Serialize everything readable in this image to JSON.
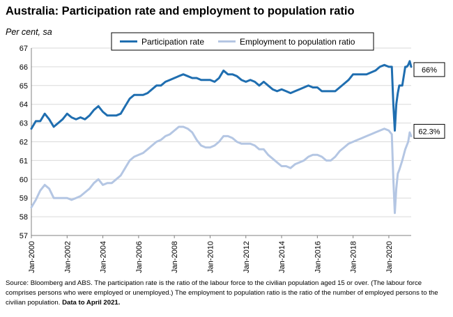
{
  "title": "Australia: Participation rate and employment to population ratio",
  "y_unit_label": "Per cent, sa",
  "source_text": "Source: Bloomberg and ABS.  The participation rate is the ratio of the labour force to the civilian population aged 15 or over. (The labour force comprises persons who were employed or unemployed.)  The employment to population ratio is the ratio of the number of employed persons to the civilian population.",
  "source_note_bold": "Data to April  2021.",
  "chart_data": {
    "type": "line",
    "title": "Australia: Participation rate and employment to population ratio",
    "ylabel": "Per cent, sa",
    "xlabel": "",
    "ylim": [
      57,
      67
    ],
    "yticks": [
      57,
      58,
      59,
      60,
      61,
      62,
      63,
      64,
      65,
      66,
      67
    ],
    "xlim": [
      "2000-01",
      "2021-04"
    ],
    "xticks": [
      "Jan-2000",
      "Jan-2002",
      "Jan-2004",
      "Jan-2006",
      "Jan-2008",
      "Jan-2010",
      "Jan-2012",
      "Jan-2014",
      "Jan-2016",
      "Jan-2018",
      "Jan-2020"
    ],
    "grid": "horizontal",
    "legend_position": "top-center",
    "series": [
      {
        "name": "Participation rate",
        "color": "#1f6eb0",
        "end_label": "66%",
        "points": [
          [
            "2000-01",
            62.7
          ],
          [
            "2000-04",
            63.1
          ],
          [
            "2000-07",
            63.1
          ],
          [
            "2000-10",
            63.5
          ],
          [
            "2001-01",
            63.2
          ],
          [
            "2001-04",
            62.8
          ],
          [
            "2001-07",
            63.0
          ],
          [
            "2001-10",
            63.2
          ],
          [
            "2002-01",
            63.5
          ],
          [
            "2002-04",
            63.3
          ],
          [
            "2002-07",
            63.2
          ],
          [
            "2002-10",
            63.3
          ],
          [
            "2003-01",
            63.2
          ],
          [
            "2003-04",
            63.4
          ],
          [
            "2003-07",
            63.7
          ],
          [
            "2003-10",
            63.9
          ],
          [
            "2004-01",
            63.6
          ],
          [
            "2004-04",
            63.4
          ],
          [
            "2004-07",
            63.4
          ],
          [
            "2004-10",
            63.4
          ],
          [
            "2005-01",
            63.5
          ],
          [
            "2005-04",
            63.9
          ],
          [
            "2005-07",
            64.3
          ],
          [
            "2005-10",
            64.5
          ],
          [
            "2006-01",
            64.5
          ],
          [
            "2006-04",
            64.5
          ],
          [
            "2006-07",
            64.6
          ],
          [
            "2006-10",
            64.8
          ],
          [
            "2007-01",
            65.0
          ],
          [
            "2007-04",
            65.0
          ],
          [
            "2007-07",
            65.2
          ],
          [
            "2007-10",
            65.3
          ],
          [
            "2008-01",
            65.4
          ],
          [
            "2008-04",
            65.5
          ],
          [
            "2008-07",
            65.6
          ],
          [
            "2008-10",
            65.5
          ],
          [
            "2009-01",
            65.4
          ],
          [
            "2009-04",
            65.4
          ],
          [
            "2009-07",
            65.3
          ],
          [
            "2009-10",
            65.3
          ],
          [
            "2010-01",
            65.3
          ],
          [
            "2010-04",
            65.2
          ],
          [
            "2010-07",
            65.4
          ],
          [
            "2010-10",
            65.8
          ],
          [
            "2011-01",
            65.6
          ],
          [
            "2011-04",
            65.6
          ],
          [
            "2011-07",
            65.5
          ],
          [
            "2011-10",
            65.3
          ],
          [
            "2012-01",
            65.2
          ],
          [
            "2012-04",
            65.3
          ],
          [
            "2012-07",
            65.2
          ],
          [
            "2012-10",
            65.0
          ],
          [
            "2013-01",
            65.2
          ],
          [
            "2013-04",
            65.0
          ],
          [
            "2013-07",
            64.8
          ],
          [
            "2013-10",
            64.7
          ],
          [
            "2014-01",
            64.8
          ],
          [
            "2014-04",
            64.7
          ],
          [
            "2014-07",
            64.6
          ],
          [
            "2014-10",
            64.7
          ],
          [
            "2015-01",
            64.8
          ],
          [
            "2015-04",
            64.9
          ],
          [
            "2015-07",
            65.0
          ],
          [
            "2015-10",
            64.9
          ],
          [
            "2016-01",
            64.9
          ],
          [
            "2016-04",
            64.7
          ],
          [
            "2016-07",
            64.7
          ],
          [
            "2016-10",
            64.7
          ],
          [
            "2017-01",
            64.7
          ],
          [
            "2017-04",
            64.9
          ],
          [
            "2017-07",
            65.1
          ],
          [
            "2017-10",
            65.3
          ],
          [
            "2018-01",
            65.6
          ],
          [
            "2018-04",
            65.6
          ],
          [
            "2018-07",
            65.6
          ],
          [
            "2018-10",
            65.6
          ],
          [
            "2019-01",
            65.7
          ],
          [
            "2019-04",
            65.8
          ],
          [
            "2019-07",
            66.0
          ],
          [
            "2019-10",
            66.1
          ],
          [
            "2020-01",
            66.0
          ],
          [
            "2020-03",
            66.0
          ],
          [
            "2020-04",
            64.0
          ],
          [
            "2020-05",
            62.6
          ],
          [
            "2020-06",
            64.0
          ],
          [
            "2020-07",
            64.6
          ],
          [
            "2020-08",
            65.0
          ],
          [
            "2020-10",
            65.0
          ],
          [
            "2020-12",
            66.0
          ],
          [
            "2021-01",
            66.0
          ],
          [
            "2021-02",
            66.1
          ],
          [
            "2021-03",
            66.3
          ],
          [
            "2021-04",
            66.0
          ]
        ]
      },
      {
        "name": "Employment to population ratio",
        "color": "#b4c6e3",
        "end_label": "62.3%",
        "points": [
          [
            "2000-01",
            58.5
          ],
          [
            "2000-04",
            58.9
          ],
          [
            "2000-07",
            59.4
          ],
          [
            "2000-10",
            59.7
          ],
          [
            "2001-01",
            59.5
          ],
          [
            "2001-04",
            59.0
          ],
          [
            "2001-07",
            59.0
          ],
          [
            "2001-10",
            59.0
          ],
          [
            "2002-01",
            59.0
          ],
          [
            "2002-04",
            58.9
          ],
          [
            "2002-07",
            59.0
          ],
          [
            "2002-10",
            59.1
          ],
          [
            "2003-01",
            59.3
          ],
          [
            "2003-04",
            59.5
          ],
          [
            "2003-07",
            59.8
          ],
          [
            "2003-10",
            60.0
          ],
          [
            "2004-01",
            59.7
          ],
          [
            "2004-04",
            59.8
          ],
          [
            "2004-07",
            59.8
          ],
          [
            "2004-10",
            60.0
          ],
          [
            "2005-01",
            60.2
          ],
          [
            "2005-04",
            60.6
          ],
          [
            "2005-07",
            61.0
          ],
          [
            "2005-10",
            61.2
          ],
          [
            "2006-01",
            61.3
          ],
          [
            "2006-04",
            61.4
          ],
          [
            "2006-07",
            61.6
          ],
          [
            "2006-10",
            61.8
          ],
          [
            "2007-01",
            62.0
          ],
          [
            "2007-04",
            62.1
          ],
          [
            "2007-07",
            62.3
          ],
          [
            "2007-10",
            62.4
          ],
          [
            "2008-01",
            62.6
          ],
          [
            "2008-04",
            62.8
          ],
          [
            "2008-07",
            62.8
          ],
          [
            "2008-10",
            62.7
          ],
          [
            "2009-01",
            62.5
          ],
          [
            "2009-04",
            62.1
          ],
          [
            "2009-07",
            61.8
          ],
          [
            "2009-10",
            61.7
          ],
          [
            "2010-01",
            61.7
          ],
          [
            "2010-04",
            61.8
          ],
          [
            "2010-07",
            62.0
          ],
          [
            "2010-10",
            62.3
          ],
          [
            "2011-01",
            62.3
          ],
          [
            "2011-04",
            62.2
          ],
          [
            "2011-07",
            62.0
          ],
          [
            "2011-10",
            61.9
          ],
          [
            "2012-01",
            61.9
          ],
          [
            "2012-04",
            61.9
          ],
          [
            "2012-07",
            61.8
          ],
          [
            "2012-10",
            61.6
          ],
          [
            "2013-01",
            61.6
          ],
          [
            "2013-04",
            61.3
          ],
          [
            "2013-07",
            61.1
          ],
          [
            "2013-10",
            60.9
          ],
          [
            "2014-01",
            60.7
          ],
          [
            "2014-04",
            60.7
          ],
          [
            "2014-07",
            60.6
          ],
          [
            "2014-10",
            60.8
          ],
          [
            "2015-01",
            60.9
          ],
          [
            "2015-04",
            61.0
          ],
          [
            "2015-07",
            61.2
          ],
          [
            "2015-10",
            61.3
          ],
          [
            "2016-01",
            61.3
          ],
          [
            "2016-04",
            61.2
          ],
          [
            "2016-07",
            61.0
          ],
          [
            "2016-10",
            61.0
          ],
          [
            "2017-01",
            61.2
          ],
          [
            "2017-04",
            61.5
          ],
          [
            "2017-07",
            61.7
          ],
          [
            "2017-10",
            61.9
          ],
          [
            "2018-01",
            62.0
          ],
          [
            "2018-04",
            62.1
          ],
          [
            "2018-07",
            62.2
          ],
          [
            "2018-10",
            62.3
          ],
          [
            "2019-01",
            62.4
          ],
          [
            "2019-04",
            62.5
          ],
          [
            "2019-07",
            62.6
          ],
          [
            "2019-10",
            62.7
          ],
          [
            "2020-01",
            62.6
          ],
          [
            "2020-03",
            62.4
          ],
          [
            "2020-04",
            60.0
          ],
          [
            "2020-05",
            58.2
          ],
          [
            "2020-06",
            59.5
          ],
          [
            "2020-07",
            60.3
          ],
          [
            "2020-08",
            60.5
          ],
          [
            "2020-10",
            61.0
          ],
          [
            "2020-12",
            61.6
          ],
          [
            "2021-01",
            61.8
          ],
          [
            "2021-02",
            62.0
          ],
          [
            "2021-03",
            62.5
          ],
          [
            "2021-04",
            62.3
          ]
        ]
      }
    ]
  }
}
